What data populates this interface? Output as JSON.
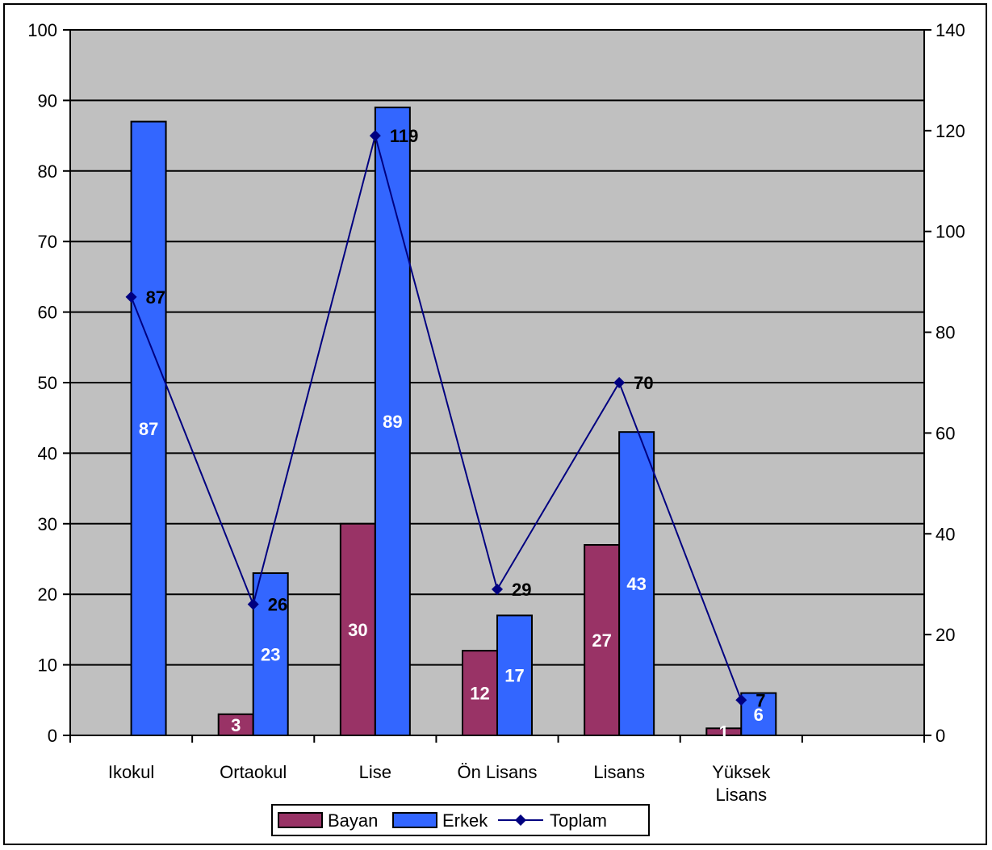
{
  "chart_data": {
    "type": "bar",
    "categories": [
      "Ikokul",
      "Ortaokul",
      "Lise",
      "Ön Lisans",
      "Lisans",
      "Yüksek Lisans"
    ],
    "series": [
      {
        "name": "Bayan",
        "type": "bar",
        "axis": "left",
        "color": "#993366",
        "values": [
          null,
          3,
          30,
          12,
          27,
          1
        ]
      },
      {
        "name": "Erkek",
        "type": "bar",
        "axis": "left",
        "color": "#3366FF",
        "values": [
          87,
          23,
          89,
          17,
          43,
          6
        ]
      },
      {
        "name": "Toplam",
        "type": "line",
        "axis": "right",
        "color": "#000080",
        "values": [
          87,
          26,
          119,
          29,
          70,
          7
        ]
      }
    ],
    "y_left": {
      "min": 0,
      "max": 100,
      "step": 10
    },
    "y_right": {
      "min": 0,
      "max": 140,
      "step": 20
    },
    "grid": true,
    "plot_background": "#C0C0C0",
    "legend_position": "bottom",
    "title": "",
    "xlabel": "",
    "ylabel": ""
  }
}
